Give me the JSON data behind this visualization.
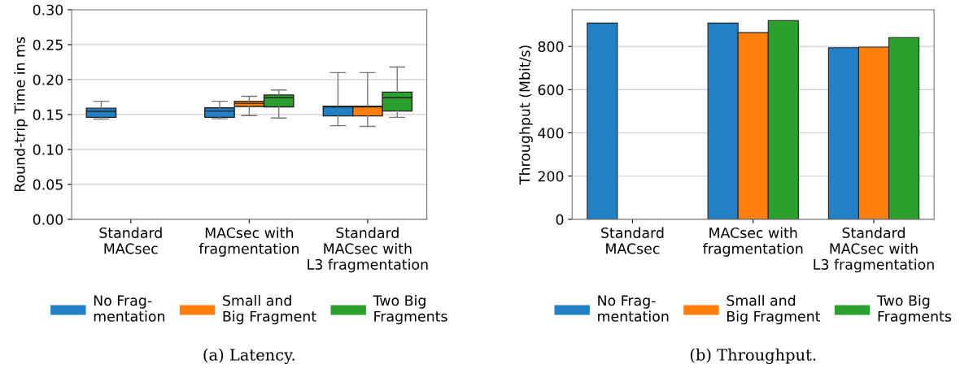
{
  "chart_data": [
    {
      "type": "box",
      "ylabel": "Round-trip Time in ms",
      "categories": [
        "Standard\nMACsec",
        "MACsec with\nfragmentation",
        "Standard\nMACsec with\nL3 fragmentation"
      ],
      "ylim": [
        0,
        0.3
      ],
      "yticks": [
        {
          "value": 0,
          "label": "0.00"
        },
        {
          "value": 0.05,
          "label": "0.05"
        },
        {
          "value": 0.1,
          "label": "0.10"
        },
        {
          "value": 0.15,
          "label": "0.15"
        },
        {
          "value": 0.2,
          "label": "0.20"
        },
        {
          "value": 0.25,
          "label": "0.25"
        },
        {
          "value": 0.3,
          "label": "0.30"
        }
      ],
      "grid": "y",
      "legend": "bottom",
      "annotations": [
        "(a) Latency."
      ],
      "series": [
        {
          "name": "No Frag-\nmentation",
          "color": "#2280c6",
          "boxes": [
            {
              "low": 0.1435,
              "q1": 0.146,
              "median": 0.1546,
              "q3": 0.159,
              "high": 0.169
            },
            {
              "low": 0.144,
              "q1": 0.146,
              "median": 0.155,
              "q3": 0.1595,
              "high": 0.169
            },
            {
              "low": 0.134,
              "q1": 0.148,
              "median": 0.161,
              "q3": 0.162,
              "high": 0.21
            }
          ]
        },
        {
          "name": "Small and\nBig Fragment",
          "color": "#ff7f0e",
          "boxes": [
            null,
            {
              "low": 0.1485,
              "q1": 0.1615,
              "median": 0.166,
              "q3": 0.169,
              "high": 0.176
            },
            {
              "low": 0.133,
              "q1": 0.148,
              "median": 0.161,
              "q3": 0.162,
              "high": 0.21
            }
          ]
        },
        {
          "name": "Two Big\nFragments",
          "color": "#2ca02c",
          "boxes": [
            null,
            {
              "low": 0.145,
              "q1": 0.161,
              "median": 0.174,
              "q3": 0.178,
              "high": 0.185
            },
            {
              "low": 0.146,
              "q1": 0.155,
              "median": 0.174,
              "q3": 0.182,
              "high": 0.218
            }
          ]
        }
      ]
    },
    {
      "type": "bar",
      "ylabel": "Throughput (Mbit/s)",
      "categories": [
        "Standard\nMACsec",
        "MACsec with\nfragmentation",
        "Standard\nMACsec with\nL3 fragmentation"
      ],
      "ylim": [
        0,
        970
      ],
      "yticks": [
        0,
        200,
        400,
        600,
        800
      ],
      "grid": "y",
      "legend": "bottom",
      "annotations": [
        "(b) Throughput."
      ],
      "series": [
        {
          "name": "No Frag-\nmentation",
          "color": "#2280c6",
          "values": [
            908,
            908,
            794
          ]
        },
        {
          "name": "Small and\nBig Fragment",
          "color": "#ff7f0e",
          "values": [
            null,
            864,
            797
          ]
        },
        {
          "name": "Two Big\nFragments",
          "color": "#2ca02c",
          "values": [
            null,
            920,
            841
          ]
        }
      ]
    }
  ]
}
